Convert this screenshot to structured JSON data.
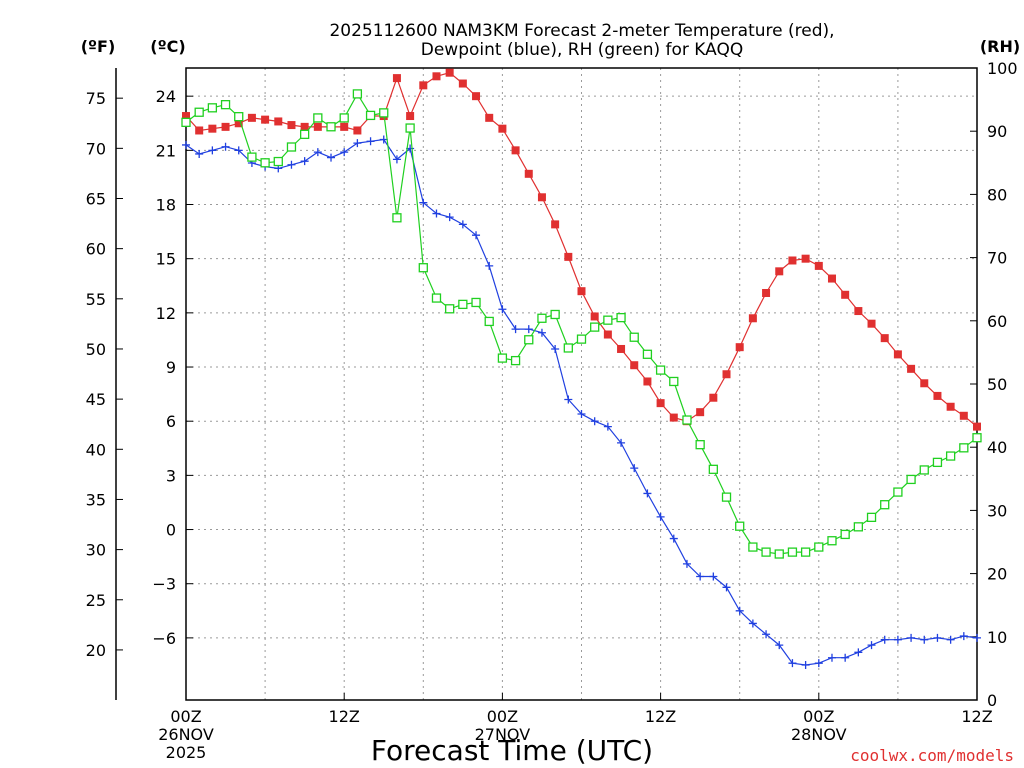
{
  "chart_data": {
    "type": "line",
    "title_line1": "2025112600 NAM3KM Forecast 2-meter Temperature (red),",
    "title_line2": "Dewpoint (blue), RH (green) for KAQQ",
    "left_outer_label": "(ºF)",
    "left_inner_label": "(ºC)",
    "right_label": "(RH)",
    "xlabel": "Forecast Time (UTC)",
    "credit": "coolwx.com/models",
    "xlim": [
      0,
      60
    ],
    "ylim_c": [
      -9.44,
      25.56
    ],
    "ylim_rh": [
      0,
      100
    ],
    "x_ticks": [
      {
        "x": 0,
        "label": "00Z",
        "date": "26NOV",
        "year": "2025"
      },
      {
        "x": 12,
        "label": "12Z"
      },
      {
        "x": 24,
        "label": "00Z",
        "date": "27NOV"
      },
      {
        "x": 36,
        "label": "12Z"
      },
      {
        "x": 48,
        "label": "00Z",
        "date": "28NOV"
      },
      {
        "x": 60,
        "label": "12Z"
      }
    ],
    "c_ticks": [
      -6,
      -3,
      0,
      3,
      6,
      9,
      12,
      15,
      18,
      21,
      24
    ],
    "c_tick_labels": [
      "−6",
      "−3",
      "0",
      "3",
      "6",
      "9",
      "12",
      "15",
      "18",
      "21",
      "24"
    ],
    "f_ticks": [
      20,
      25,
      30,
      35,
      40,
      45,
      50,
      55,
      60,
      65,
      70,
      75
    ],
    "rh_ticks": [
      0,
      10,
      20,
      30,
      40,
      50,
      60,
      70,
      80,
      90,
      100
    ],
    "series": [
      {
        "name": "2-meter Temperature",
        "axis": "celsius",
        "color": "#e03030",
        "marker": "filled-square",
        "x": [
          0,
          1,
          2,
          3,
          4,
          5,
          6,
          7,
          8,
          9,
          10,
          11,
          12,
          13,
          14,
          15,
          16,
          17,
          18,
          19,
          20,
          21,
          22,
          23,
          24,
          25,
          26,
          27,
          28,
          29,
          30,
          31,
          32,
          33,
          34,
          35,
          36,
          37,
          38,
          39,
          40,
          41,
          42,
          43,
          44,
          45,
          46,
          47,
          48,
          49,
          50,
          51,
          52,
          53,
          54,
          55,
          56,
          57,
          58,
          59,
          60
        ],
        "values": [
          22.9,
          22.1,
          22.2,
          22.3,
          22.5,
          22.8,
          22.7,
          22.6,
          22.4,
          22.3,
          22.3,
          22.3,
          22.3,
          22.1,
          22.9,
          22.9,
          25.0,
          22.9,
          24.6,
          25.1,
          25.3,
          24.7,
          24.0,
          22.8,
          22.2,
          21.0,
          19.7,
          18.4,
          16.9,
          15.1,
          13.2,
          11.8,
          10.8,
          10.0,
          9.1,
          8.2,
          7.0,
          6.2,
          6.0,
          6.5,
          7.3,
          8.6,
          10.1,
          11.7,
          13.1,
          14.3,
          14.9,
          15.0,
          14.6,
          13.9,
          13.0,
          12.1,
          11.4,
          10.6,
          9.7,
          8.9,
          8.1,
          7.4,
          6.8,
          6.3,
          5.7
        ]
      },
      {
        "name": "Dewpoint",
        "axis": "celsius",
        "color": "#2040e0",
        "marker": "plus",
        "x": [
          0,
          1,
          2,
          3,
          4,
          5,
          6,
          7,
          8,
          9,
          10,
          11,
          12,
          13,
          14,
          15,
          16,
          17,
          18,
          19,
          20,
          21,
          22,
          23,
          24,
          25,
          26,
          27,
          28,
          29,
          30,
          31,
          32,
          33,
          34,
          35,
          36,
          37,
          38,
          39,
          40,
          41,
          42,
          43,
          44,
          45,
          46,
          47,
          48,
          49,
          50,
          51,
          52,
          53,
          54,
          55,
          56,
          57,
          58,
          59,
          60
        ],
        "values": [
          21.3,
          20.8,
          21.0,
          21.2,
          21.0,
          20.3,
          20.1,
          20.0,
          20.2,
          20.4,
          20.9,
          20.6,
          20.9,
          21.4,
          21.5,
          21.6,
          20.5,
          21.1,
          18.1,
          17.5,
          17.3,
          16.9,
          16.3,
          14.6,
          12.2,
          11.1,
          11.1,
          10.9,
          10.0,
          7.2,
          6.4,
          6.0,
          5.7,
          4.8,
          3.4,
          2.0,
          0.7,
          -0.5,
          -1.9,
          -2.6,
          -2.6,
          -3.2,
          -4.5,
          -5.2,
          -5.8,
          -6.4,
          -7.4,
          -7.5,
          -7.4,
          -7.1,
          -7.1,
          -6.8,
          -6.4,
          -6.1,
          -6.1,
          -6.0,
          -6.1,
          -6.0,
          -6.1,
          -5.9,
          -6.0
        ]
      },
      {
        "name": "RH",
        "axis": "rh",
        "color": "#20d020",
        "marker": "open-square",
        "x": [
          0,
          1,
          2,
          3,
          4,
          5,
          6,
          7,
          8,
          9,
          10,
          11,
          12,
          13,
          14,
          15,
          16,
          17,
          18,
          19,
          20,
          21,
          22,
          23,
          24,
          25,
          26,
          27,
          28,
          29,
          30,
          31,
          32,
          33,
          34,
          35,
          36,
          37,
          38,
          39,
          40,
          41,
          42,
          43,
          44,
          45,
          46,
          47,
          48,
          49,
          50,
          51,
          52,
          53,
          54,
          55,
          56,
          57,
          58,
          59,
          60
        ],
        "values": [
          91.4,
          93.0,
          93.7,
          94.2,
          92.3,
          85.9,
          85.0,
          85.2,
          87.5,
          89.5,
          92.1,
          90.7,
          92.1,
          95.9,
          92.5,
          92.9,
          76.3,
          90.5,
          68.4,
          63.6,
          61.9,
          62.6,
          62.9,
          59.9,
          54.1,
          53.7,
          57.0,
          60.4,
          61.0,
          55.7,
          57.1,
          59.0,
          60.1,
          60.5,
          57.4,
          54.7,
          52.2,
          50.4,
          44.3,
          40.4,
          36.5,
          32.1,
          27.5,
          24.2,
          23.4,
          23.1,
          23.4,
          23.4,
          24.2,
          25.2,
          26.2,
          27.4,
          28.9,
          30.9,
          32.9,
          34.9,
          36.4,
          37.6,
          38.6,
          39.9,
          41.5
        ]
      }
    ]
  }
}
